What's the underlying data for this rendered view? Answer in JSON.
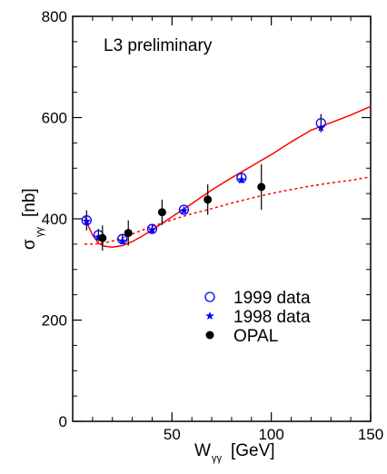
{
  "chart_data": {
    "type": "scatter",
    "annotation": "L3 preliminary",
    "xlabel": {
      "main": "W",
      "sub": "γγ",
      "unit": "[GeV]"
    },
    "ylabel": {
      "main": "σ",
      "sub": "γγ",
      "unit": "[nb]"
    },
    "xlim": [
      0,
      150
    ],
    "ylim": [
      0,
      800
    ],
    "x_ticks": [
      50,
      100,
      150
    ],
    "y_ticks": [
      0,
      200,
      400,
      600,
      800
    ],
    "grid": false,
    "legend_position": "lower-right",
    "series": [
      {
        "name": "1999 data",
        "marker": "open-circle",
        "color": "#0000ff",
        "points": [
          {
            "x": 7,
            "y": 397,
            "err": 20
          },
          {
            "x": 13,
            "y": 368,
            "err": 12
          },
          {
            "x": 25,
            "y": 360,
            "err": 10
          },
          {
            "x": 40,
            "y": 380,
            "err": 8
          },
          {
            "x": 56,
            "y": 418,
            "err": 6
          },
          {
            "x": 85,
            "y": 481,
            "err": 10
          },
          {
            "x": 125,
            "y": 589,
            "err": 18
          }
        ]
      },
      {
        "name": "1998 data",
        "marker": "star",
        "color": "#0000ff",
        "points": [
          {
            "x": 7,
            "y": 395
          },
          {
            "x": 13,
            "y": 364
          },
          {
            "x": 25,
            "y": 356
          },
          {
            "x": 40,
            "y": 378
          },
          {
            "x": 56,
            "y": 416
          },
          {
            "x": 85,
            "y": 477
          },
          {
            "x": 125,
            "y": 580
          }
        ]
      },
      {
        "name": "OPAL",
        "marker": "filled-circle",
        "color": "#000000",
        "points": [
          {
            "x": 15,
            "y": 362,
            "err": 25
          },
          {
            "x": 28,
            "y": 372,
            "err": 25
          },
          {
            "x": 45,
            "y": 413,
            "err": 25
          },
          {
            "x": 68,
            "y": 438,
            "err": 30
          },
          {
            "x": 95,
            "y": 463,
            "err": 45
          }
        ]
      }
    ],
    "curves": [
      {
        "style": "solid",
        "color": "#ff0000",
        "points": [
          [
            6,
            405
          ],
          [
            8,
            385
          ],
          [
            10,
            368
          ],
          [
            13,
            352
          ],
          [
            16,
            346
          ],
          [
            20,
            344
          ],
          [
            25,
            347
          ],
          [
            30,
            355
          ],
          [
            35,
            366
          ],
          [
            40,
            378
          ],
          [
            50,
            404
          ],
          [
            60,
            430
          ],
          [
            70,
            457
          ],
          [
            80,
            481
          ],
          [
            90,
            504
          ],
          [
            100,
            527
          ],
          [
            110,
            552
          ],
          [
            120,
            575
          ],
          [
            130,
            590
          ],
          [
            140,
            605
          ],
          [
            150,
            622
          ]
        ]
      },
      {
        "style": "dashed",
        "color": "#ff0000",
        "points": [
          [
            6,
            350
          ],
          [
            10,
            350
          ],
          [
            15,
            352
          ],
          [
            20,
            356
          ],
          [
            25,
            362
          ],
          [
            30,
            370
          ],
          [
            40,
            385
          ],
          [
            50,
            398
          ],
          [
            60,
            410
          ],
          [
            70,
            420
          ],
          [
            80,
            431
          ],
          [
            90,
            441
          ],
          [
            100,
            450
          ],
          [
            110,
            458
          ],
          [
            120,
            465
          ],
          [
            130,
            471
          ],
          [
            140,
            476
          ],
          [
            150,
            483
          ]
        ]
      }
    ]
  }
}
